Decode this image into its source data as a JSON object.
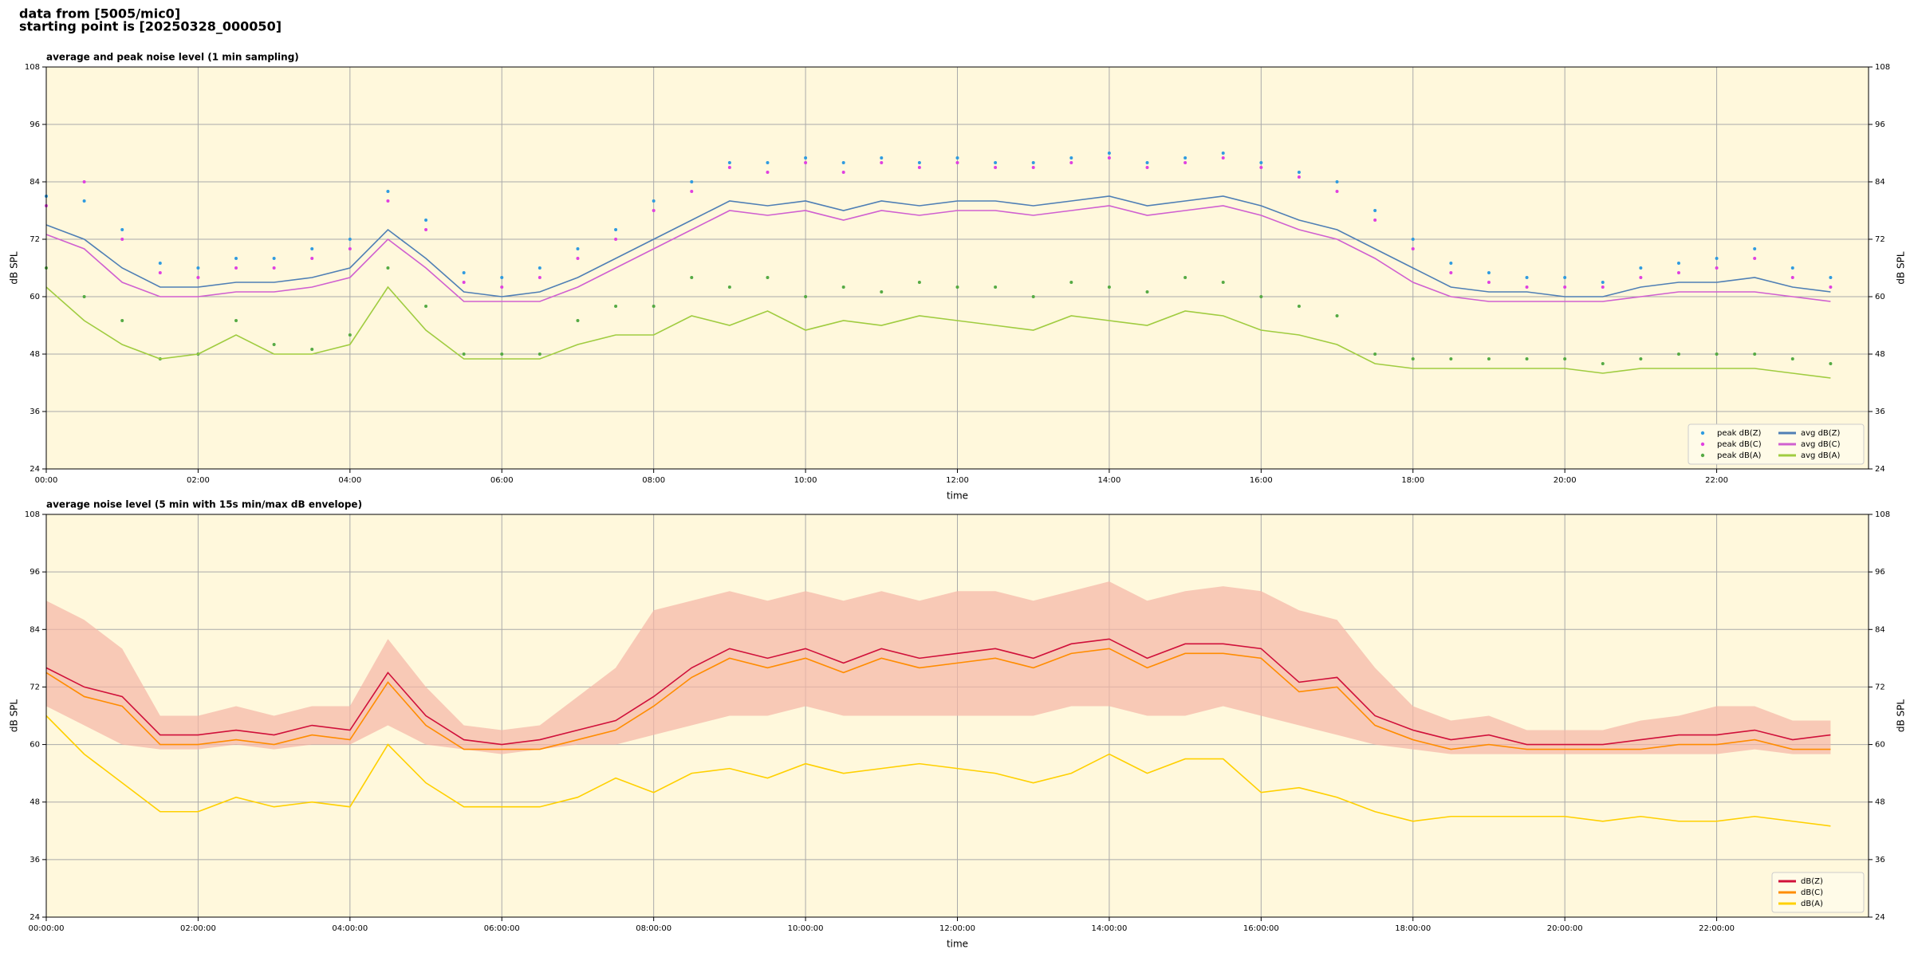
{
  "header_lines": [
    "data from [5005/mic0]",
    "starting point is [20250328_000050]"
  ],
  "chart_data": [
    {
      "type": "line",
      "title": "average and peak noise level (1 min sampling)",
      "x_label": "time",
      "y_label": "dB SPL",
      "x": [
        0,
        0.5,
        1,
        1.5,
        2,
        2.5,
        3,
        3.5,
        4,
        4.5,
        5,
        5.5,
        6,
        6.5,
        7,
        7.5,
        8,
        8.5,
        9,
        9.5,
        10,
        10.5,
        11,
        11.5,
        12,
        12.5,
        13,
        13.5,
        14,
        14.5,
        15,
        15.5,
        16,
        16.5,
        17,
        17.5,
        18,
        18.5,
        19,
        19.5,
        20,
        20.5,
        21,
        21.5,
        22,
        22.5,
        23,
        23.5
      ],
      "xlim": [
        0,
        24
      ],
      "xticks": [
        {
          "value": 0,
          "label": "00:00"
        },
        {
          "value": 2,
          "label": "02:00"
        },
        {
          "value": 4,
          "label": "04:00"
        },
        {
          "value": 6,
          "label": "06:00"
        },
        {
          "value": 8,
          "label": "08:00"
        },
        {
          "value": 10,
          "label": "10:00"
        },
        {
          "value": 12,
          "label": "12:00"
        },
        {
          "value": 14,
          "label": "14:00"
        },
        {
          "value": 16,
          "label": "16:00"
        },
        {
          "value": 18,
          "label": "18:00"
        },
        {
          "value": 20,
          "label": "20:00"
        },
        {
          "value": 22,
          "label": "22:00"
        }
      ],
      "ylim": [
        24,
        108
      ],
      "yticks": [
        24,
        36,
        48,
        60,
        72,
        84,
        96,
        108
      ],
      "grid": true,
      "background": "#fff8dc",
      "legend_corner": "lower right",
      "legend_columns": 2,
      "series": [
        {
          "name": "peak dB(Z)",
          "kind": "scatter",
          "color": "#2f9be0",
          "values": [
            81,
            80,
            74,
            67,
            66,
            68,
            68,
            70,
            72,
            82,
            76,
            65,
            64,
            66,
            70,
            74,
            80,
            84,
            88,
            88,
            89,
            88,
            89,
            88,
            89,
            88,
            88,
            89,
            90,
            88,
            89,
            90,
            88,
            86,
            84,
            78,
            72,
            67,
            65,
            64,
            64,
            63,
            66,
            67,
            68,
            70,
            66,
            64
          ]
        },
        {
          "name": "peak dB(C)",
          "kind": "scatter",
          "color": "#e040e0",
          "values": [
            79,
            84,
            72,
            65,
            64,
            66,
            66,
            68,
            70,
            80,
            74,
            63,
            62,
            64,
            68,
            72,
            78,
            82,
            87,
            86,
            88,
            86,
            88,
            87,
            88,
            87,
            87,
            88,
            89,
            87,
            88,
            89,
            87,
            85,
            82,
            76,
            70,
            65,
            63,
            62,
            62,
            62,
            64,
            65,
            66,
            68,
            64,
            62
          ]
        },
        {
          "name": "peak dB(A)",
          "kind": "scatter",
          "color": "#55aa44",
          "values": [
            66,
            60,
            55,
            47,
            48,
            55,
            50,
            49,
            52,
            66,
            58,
            48,
            48,
            48,
            55,
            58,
            58,
            64,
            62,
            64,
            60,
            62,
            61,
            63,
            62,
            62,
            60,
            63,
            62,
            61,
            64,
            63,
            60,
            58,
            56,
            48,
            47,
            47,
            47,
            47,
            47,
            46,
            47,
            48,
            48,
            48,
            47,
            46
          ]
        },
        {
          "name": "avg dB(Z)",
          "kind": "line",
          "color": "#4f7fb5",
          "values": [
            75,
            72,
            66,
            62,
            62,
            63,
            63,
            64,
            66,
            74,
            68,
            61,
            60,
            61,
            64,
            68,
            72,
            76,
            80,
            79,
            80,
            78,
            80,
            79,
            80,
            80,
            79,
            80,
            81,
            79,
            80,
            81,
            79,
            76,
            74,
            70,
            66,
            62,
            61,
            61,
            60,
            60,
            62,
            63,
            63,
            64,
            62,
            61
          ]
        },
        {
          "name": "avg dB(C)",
          "kind": "line",
          "color": "#d060d0",
          "values": [
            73,
            70,
            63,
            60,
            60,
            61,
            61,
            62,
            64,
            72,
            66,
            59,
            59,
            59,
            62,
            66,
            70,
            74,
            78,
            77,
            78,
            76,
            78,
            77,
            78,
            78,
            77,
            78,
            79,
            77,
            78,
            79,
            77,
            74,
            72,
            68,
            63,
            60,
            59,
            59,
            59,
            59,
            60,
            61,
            61,
            61,
            60,
            59
          ]
        },
        {
          "name": "avg dB(A)",
          "kind": "line",
          "color": "#a0cc40",
          "values": [
            62,
            55,
            50,
            47,
            48,
            52,
            48,
            48,
            50,
            62,
            53,
            47,
            47,
            47,
            50,
            52,
            52,
            56,
            54,
            57,
            53,
            55,
            54,
            56,
            55,
            54,
            53,
            56,
            55,
            54,
            57,
            56,
            53,
            52,
            50,
            46,
            45,
            45,
            45,
            45,
            45,
            44,
            45,
            45,
            45,
            45,
            44,
            43
          ]
        }
      ]
    },
    {
      "type": "line",
      "title": "average noise level (5 min with 15s min/max dB envelope)",
      "x_label": "time",
      "y_label": "dB SPL",
      "x": [
        0,
        0.5,
        1,
        1.5,
        2,
        2.5,
        3,
        3.5,
        4,
        4.5,
        5,
        5.5,
        6,
        6.5,
        7,
        7.5,
        8,
        8.5,
        9,
        9.5,
        10,
        10.5,
        11,
        11.5,
        12,
        12.5,
        13,
        13.5,
        14,
        14.5,
        15,
        15.5,
        16,
        16.5,
        17,
        17.5,
        18,
        18.5,
        19,
        19.5,
        20,
        20.5,
        21,
        21.5,
        22,
        22.5,
        23,
        23.5
      ],
      "xlim": [
        0,
        24
      ],
      "xticks": [
        {
          "value": 0,
          "label": "00:00:00"
        },
        {
          "value": 2,
          "label": "02:00:00"
        },
        {
          "value": 4,
          "label": "04:00:00"
        },
        {
          "value": 6,
          "label": "06:00:00"
        },
        {
          "value": 8,
          "label": "08:00:00"
        },
        {
          "value": 10,
          "label": "10:00:00"
        },
        {
          "value": 12,
          "label": "12:00:00"
        },
        {
          "value": 14,
          "label": "14:00:00"
        },
        {
          "value": 16,
          "label": "16:00:00"
        },
        {
          "value": 18,
          "label": "18:00:00"
        },
        {
          "value": 20,
          "label": "20:00:00"
        },
        {
          "value": 22,
          "label": "22:00:00"
        }
      ],
      "ylim": [
        24,
        108
      ],
      "yticks": [
        24,
        36,
        48,
        60,
        72,
        84,
        96,
        108
      ],
      "grid": true,
      "background": "#fff8dc",
      "legend_corner": "lower right",
      "legend_columns": 1,
      "envelope": {
        "color": "#f5b5a5",
        "max": [
          90,
          86,
          80,
          66,
          66,
          68,
          66,
          68,
          68,
          82,
          72,
          64,
          63,
          64,
          70,
          76,
          88,
          90,
          92,
          90,
          92,
          90,
          92,
          90,
          92,
          92,
          90,
          92,
          94,
          90,
          92,
          93,
          92,
          88,
          86,
          76,
          68,
          65,
          66,
          63,
          63,
          63,
          65,
          66,
          68,
          68,
          65,
          65
        ],
        "min": [
          68,
          64,
          60,
          59,
          59,
          60,
          59,
          60,
          60,
          64,
          60,
          59,
          58,
          59,
          60,
          60,
          62,
          64,
          66,
          66,
          68,
          66,
          66,
          66,
          66,
          66,
          66,
          68,
          68,
          66,
          66,
          68,
          66,
          64,
          62,
          60,
          59,
          58,
          58,
          58,
          58,
          58,
          58,
          58,
          58,
          59,
          58,
          58
        ]
      },
      "series": [
        {
          "name": "dB(Z)",
          "kind": "line",
          "color": "#d0103a",
          "values": [
            76,
            72,
            70,
            62,
            62,
            63,
            62,
            64,
            63,
            75,
            66,
            61,
            60,
            61,
            63,
            65,
            70,
            76,
            80,
            78,
            80,
            77,
            80,
            78,
            79,
            80,
            78,
            81,
            82,
            78,
            81,
            81,
            80,
            73,
            74,
            66,
            63,
            61,
            62,
            60,
            60,
            60,
            61,
            62,
            62,
            63,
            61,
            62
          ]
        },
        {
          "name": "dB(C)",
          "kind": "line",
          "color": "#ff8c00",
          "values": [
            75,
            70,
            68,
            60,
            60,
            61,
            60,
            62,
            61,
            73,
            64,
            59,
            59,
            59,
            61,
            63,
            68,
            74,
            78,
            76,
            78,
            75,
            78,
            76,
            77,
            78,
            76,
            79,
            80,
            76,
            79,
            79,
            78,
            71,
            72,
            64,
            61,
            59,
            60,
            59,
            59,
            59,
            59,
            60,
            60,
            61,
            59,
            59
          ]
        },
        {
          "name": "dB(A)",
          "kind": "line",
          "color": "#ffd000",
          "values": [
            66,
            58,
            52,
            46,
            46,
            49,
            47,
            48,
            47,
            60,
            52,
            47,
            47,
            47,
            49,
            53,
            50,
            54,
            55,
            53,
            56,
            54,
            55,
            56,
            55,
            54,
            52,
            54,
            58,
            54,
            57,
            57,
            50,
            51,
            49,
            46,
            44,
            45,
            45,
            45,
            45,
            44,
            45,
            44,
            44,
            45,
            44,
            43
          ]
        }
      ]
    }
  ]
}
